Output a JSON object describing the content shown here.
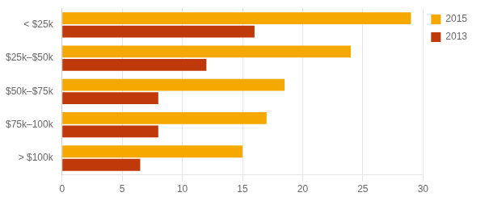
{
  "chart_data": {
    "type": "bar",
    "orientation": "horizontal",
    "categories": [
      "< $25k",
      "$25k–$50k",
      "$50k–$75k",
      "$75k–100k",
      "> $100k"
    ],
    "series": [
      {
        "name": "2015",
        "color": "#F5A800",
        "values": [
          29,
          24,
          18.5,
          17,
          15
        ]
      },
      {
        "name": "2013",
        "color": "#C0390A",
        "values": [
          16,
          12,
          8,
          8,
          6.5
        ]
      }
    ],
    "xlim": [
      0,
      30
    ],
    "xticks": [
      0,
      5,
      10,
      15,
      20,
      25,
      30
    ],
    "grid": true,
    "legend": "right"
  }
}
